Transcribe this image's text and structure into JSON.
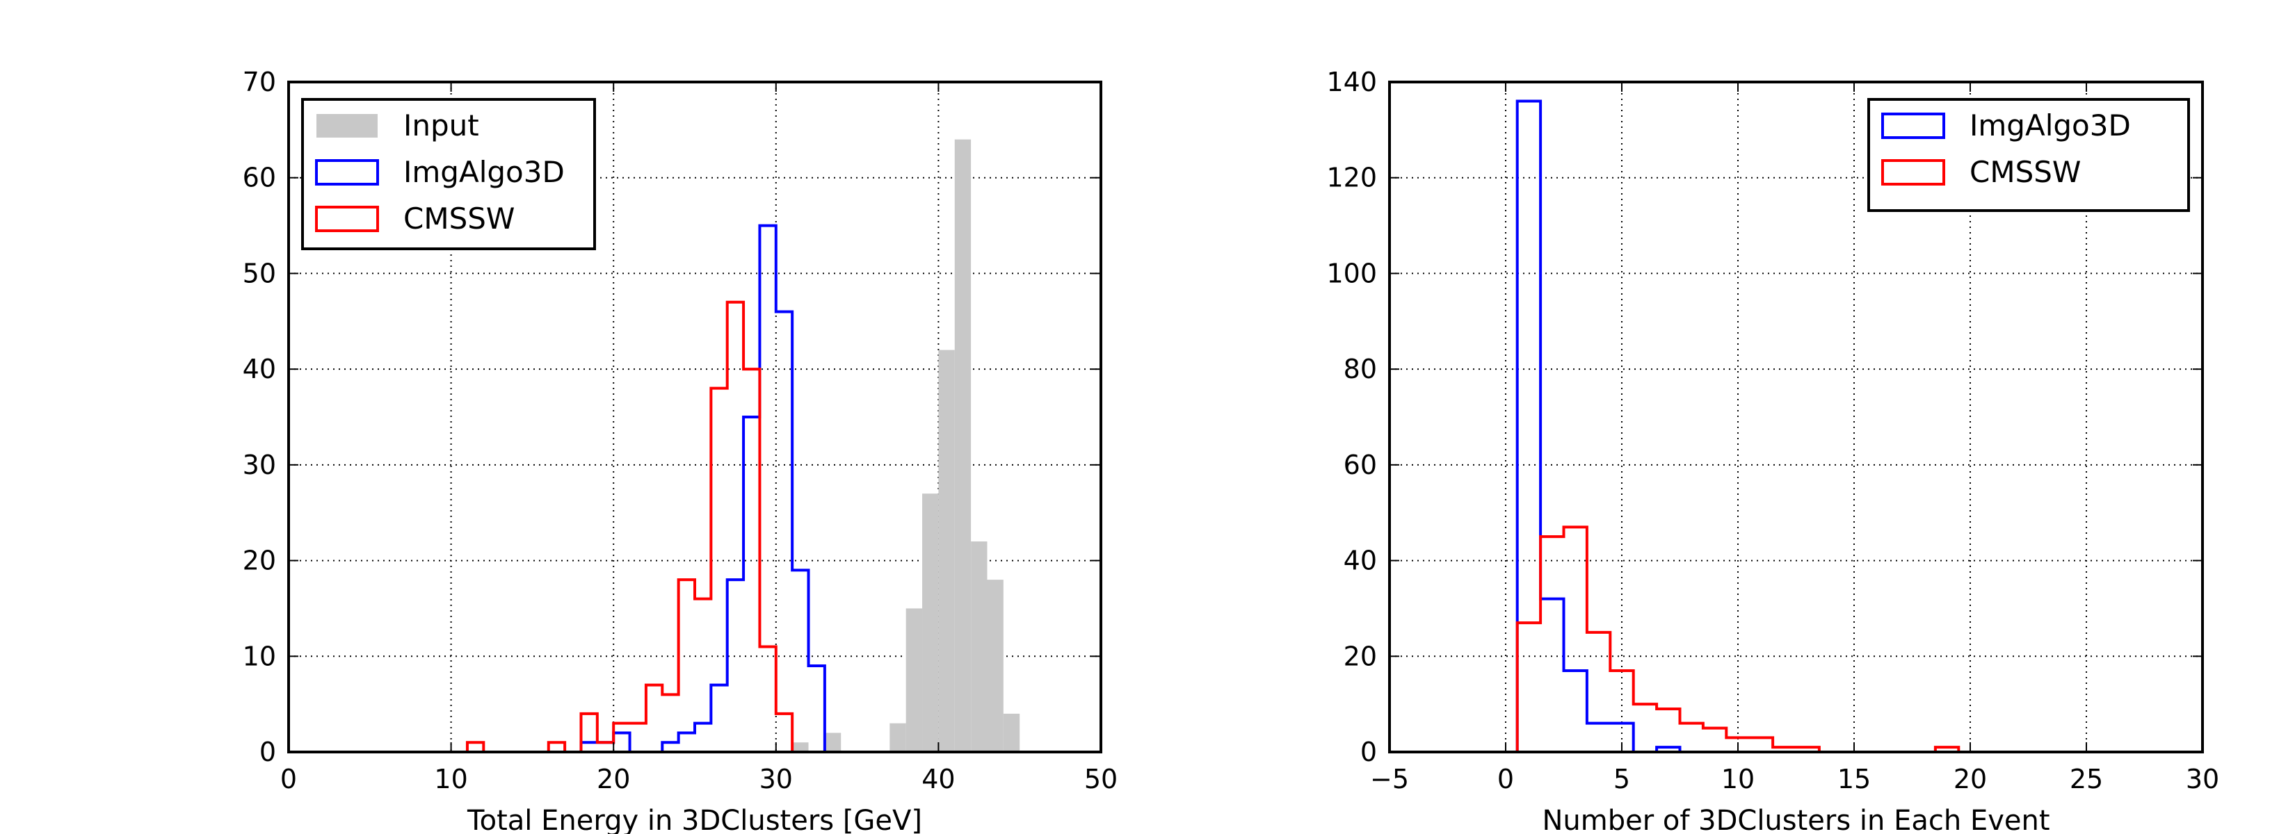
{
  "chart_data": [
    {
      "type": "histogram",
      "xlabel": "Total Energy in 3DClusters [GeV]",
      "ylabel": "",
      "xlim": [
        0,
        50
      ],
      "ylim": [
        0,
        70
      ],
      "xticks": [
        0,
        10,
        20,
        30,
        40,
        50
      ],
      "yticks": [
        0,
        10,
        20,
        30,
        40,
        50,
        60,
        70
      ],
      "grid": true,
      "legend_position": "upper-left",
      "series": [
        {
          "name": "Input",
          "style": "filled",
          "color": "#c8c8c8",
          "bins": [
            {
              "x0": 31.0,
              "x1": 32.0,
              "count": 1
            },
            {
              "x0": 33.0,
              "x1": 34.0,
              "count": 2
            },
            {
              "x0": 37.0,
              "x1": 38.0,
              "count": 3
            },
            {
              "x0": 38.0,
              "x1": 39.0,
              "count": 15
            },
            {
              "x0": 39.0,
              "x1": 40.0,
              "count": 27
            },
            {
              "x0": 40.0,
              "x1": 41.0,
              "count": 42
            },
            {
              "x0": 41.0,
              "x1": 42.0,
              "count": 64
            },
            {
              "x0": 42.0,
              "x1": 43.0,
              "count": 22
            },
            {
              "x0": 43.0,
              "x1": 44.0,
              "count": 18
            },
            {
              "x0": 44.0,
              "x1": 45.0,
              "count": 4
            }
          ]
        },
        {
          "name": "ImgAlgo3D",
          "style": "step",
          "color": "#0000ff",
          "bins": [
            {
              "x0": 18.0,
              "x1": 19.0,
              "count": 1
            },
            {
              "x0": 19.0,
              "x1": 20.0,
              "count": 1
            },
            {
              "x0": 20.0,
              "x1": 21.0,
              "count": 2
            },
            {
              "x0": 21.0,
              "x1": 22.0,
              "count": 0
            },
            {
              "x0": 22.0,
              "x1": 23.0,
              "count": 0
            },
            {
              "x0": 23.0,
              "x1": 24.0,
              "count": 1
            },
            {
              "x0": 24.0,
              "x1": 25.0,
              "count": 2
            },
            {
              "x0": 25.0,
              "x1": 26.0,
              "count": 3
            },
            {
              "x0": 26.0,
              "x1": 27.0,
              "count": 7
            },
            {
              "x0": 27.0,
              "x1": 28.0,
              "count": 18
            },
            {
              "x0": 28.0,
              "x1": 29.0,
              "count": 35
            },
            {
              "x0": 29.0,
              "x1": 30.0,
              "count": 55
            },
            {
              "x0": 30.0,
              "x1": 31.0,
              "count": 46
            },
            {
              "x0": 31.0,
              "x1": 32.0,
              "count": 19
            },
            {
              "x0": 32.0,
              "x1": 33.0,
              "count": 9
            }
          ]
        },
        {
          "name": "CMSSW",
          "style": "step",
          "color": "#ff0000",
          "bins": [
            {
              "x0": 11.0,
              "x1": 12.0,
              "count": 1
            },
            {
              "x0": 12.0,
              "x1": 13.0,
              "count": 0
            },
            {
              "x0": 13.0,
              "x1": 14.0,
              "count": 0
            },
            {
              "x0": 14.0,
              "x1": 15.0,
              "count": 0
            },
            {
              "x0": 15.0,
              "x1": 16.0,
              "count": 0
            },
            {
              "x0": 16.0,
              "x1": 17.0,
              "count": 1
            },
            {
              "x0": 17.0,
              "x1": 18.0,
              "count": 0
            },
            {
              "x0": 18.0,
              "x1": 19.0,
              "count": 4
            },
            {
              "x0": 19.0,
              "x1": 20.0,
              "count": 1
            },
            {
              "x0": 20.0,
              "x1": 21.0,
              "count": 3
            },
            {
              "x0": 21.0,
              "x1": 22.0,
              "count": 3
            },
            {
              "x0": 22.0,
              "x1": 23.0,
              "count": 7
            },
            {
              "x0": 23.0,
              "x1": 24.0,
              "count": 6
            },
            {
              "x0": 24.0,
              "x1": 25.0,
              "count": 18
            },
            {
              "x0": 25.0,
              "x1": 26.0,
              "count": 16
            },
            {
              "x0": 26.0,
              "x1": 27.0,
              "count": 38
            },
            {
              "x0": 27.0,
              "x1": 28.0,
              "count": 47
            },
            {
              "x0": 28.0,
              "x1": 29.0,
              "count": 40
            },
            {
              "x0": 29.0,
              "x1": 30.0,
              "count": 11
            },
            {
              "x0": 30.0,
              "x1": 31.0,
              "count": 4
            }
          ]
        }
      ]
    },
    {
      "type": "histogram",
      "xlabel": "Number of 3DClusters in Each Event",
      "ylabel": "",
      "xlim": [
        -5,
        30
      ],
      "ylim": [
        0,
        140
      ],
      "xticks": [
        -5,
        0,
        5,
        10,
        15,
        20,
        25,
        30
      ],
      "yticks": [
        0,
        20,
        40,
        60,
        80,
        100,
        120,
        140
      ],
      "grid": true,
      "legend_position": "upper-right",
      "series": [
        {
          "name": "ImgAlgo3D",
          "style": "step",
          "color": "#0000ff",
          "bins": [
            {
              "x0": 0.5,
              "x1": 1.5,
              "count": 136
            },
            {
              "x0": 1.5,
              "x1": 2.5,
              "count": 32
            },
            {
              "x0": 2.5,
              "x1": 3.5,
              "count": 17
            },
            {
              "x0": 3.5,
              "x1": 4.5,
              "count": 6
            },
            {
              "x0": 4.5,
              "x1": 5.5,
              "count": 6
            },
            {
              "x0": 5.5,
              "x1": 6.5,
              "count": 0
            },
            {
              "x0": 6.5,
              "x1": 7.5,
              "count": 1
            }
          ]
        },
        {
          "name": "CMSSW",
          "style": "step",
          "color": "#ff0000",
          "bins": [
            {
              "x0": 0.5,
              "x1": 1.5,
              "count": 27
            },
            {
              "x0": 1.5,
              "x1": 2.5,
              "count": 45
            },
            {
              "x0": 2.5,
              "x1": 3.5,
              "count": 47
            },
            {
              "x0": 3.5,
              "x1": 4.5,
              "count": 25
            },
            {
              "x0": 4.5,
              "x1": 5.5,
              "count": 17
            },
            {
              "x0": 5.5,
              "x1": 6.5,
              "count": 10
            },
            {
              "x0": 6.5,
              "x1": 7.5,
              "count": 9
            },
            {
              "x0": 7.5,
              "x1": 8.5,
              "count": 6
            },
            {
              "x0": 8.5,
              "x1": 9.5,
              "count": 5
            },
            {
              "x0": 9.5,
              "x1": 10.5,
              "count": 3
            },
            {
              "x0": 10.5,
              "x1": 11.5,
              "count": 3
            },
            {
              "x0": 11.5,
              "x1": 12.5,
              "count": 1
            },
            {
              "x0": 12.5,
              "x1": 13.5,
              "count": 1
            },
            {
              "x0": 13.5,
              "x1": 14.5,
              "count": 0
            },
            {
              "x0": 14.5,
              "x1": 15.5,
              "count": 0
            },
            {
              "x0": 15.5,
              "x1": 16.5,
              "count": 0
            },
            {
              "x0": 16.5,
              "x1": 17.5,
              "count": 0
            },
            {
              "x0": 17.5,
              "x1": 18.5,
              "count": 0
            },
            {
              "x0": 18.5,
              "x1": 19.5,
              "count": 1
            }
          ]
        }
      ]
    }
  ]
}
